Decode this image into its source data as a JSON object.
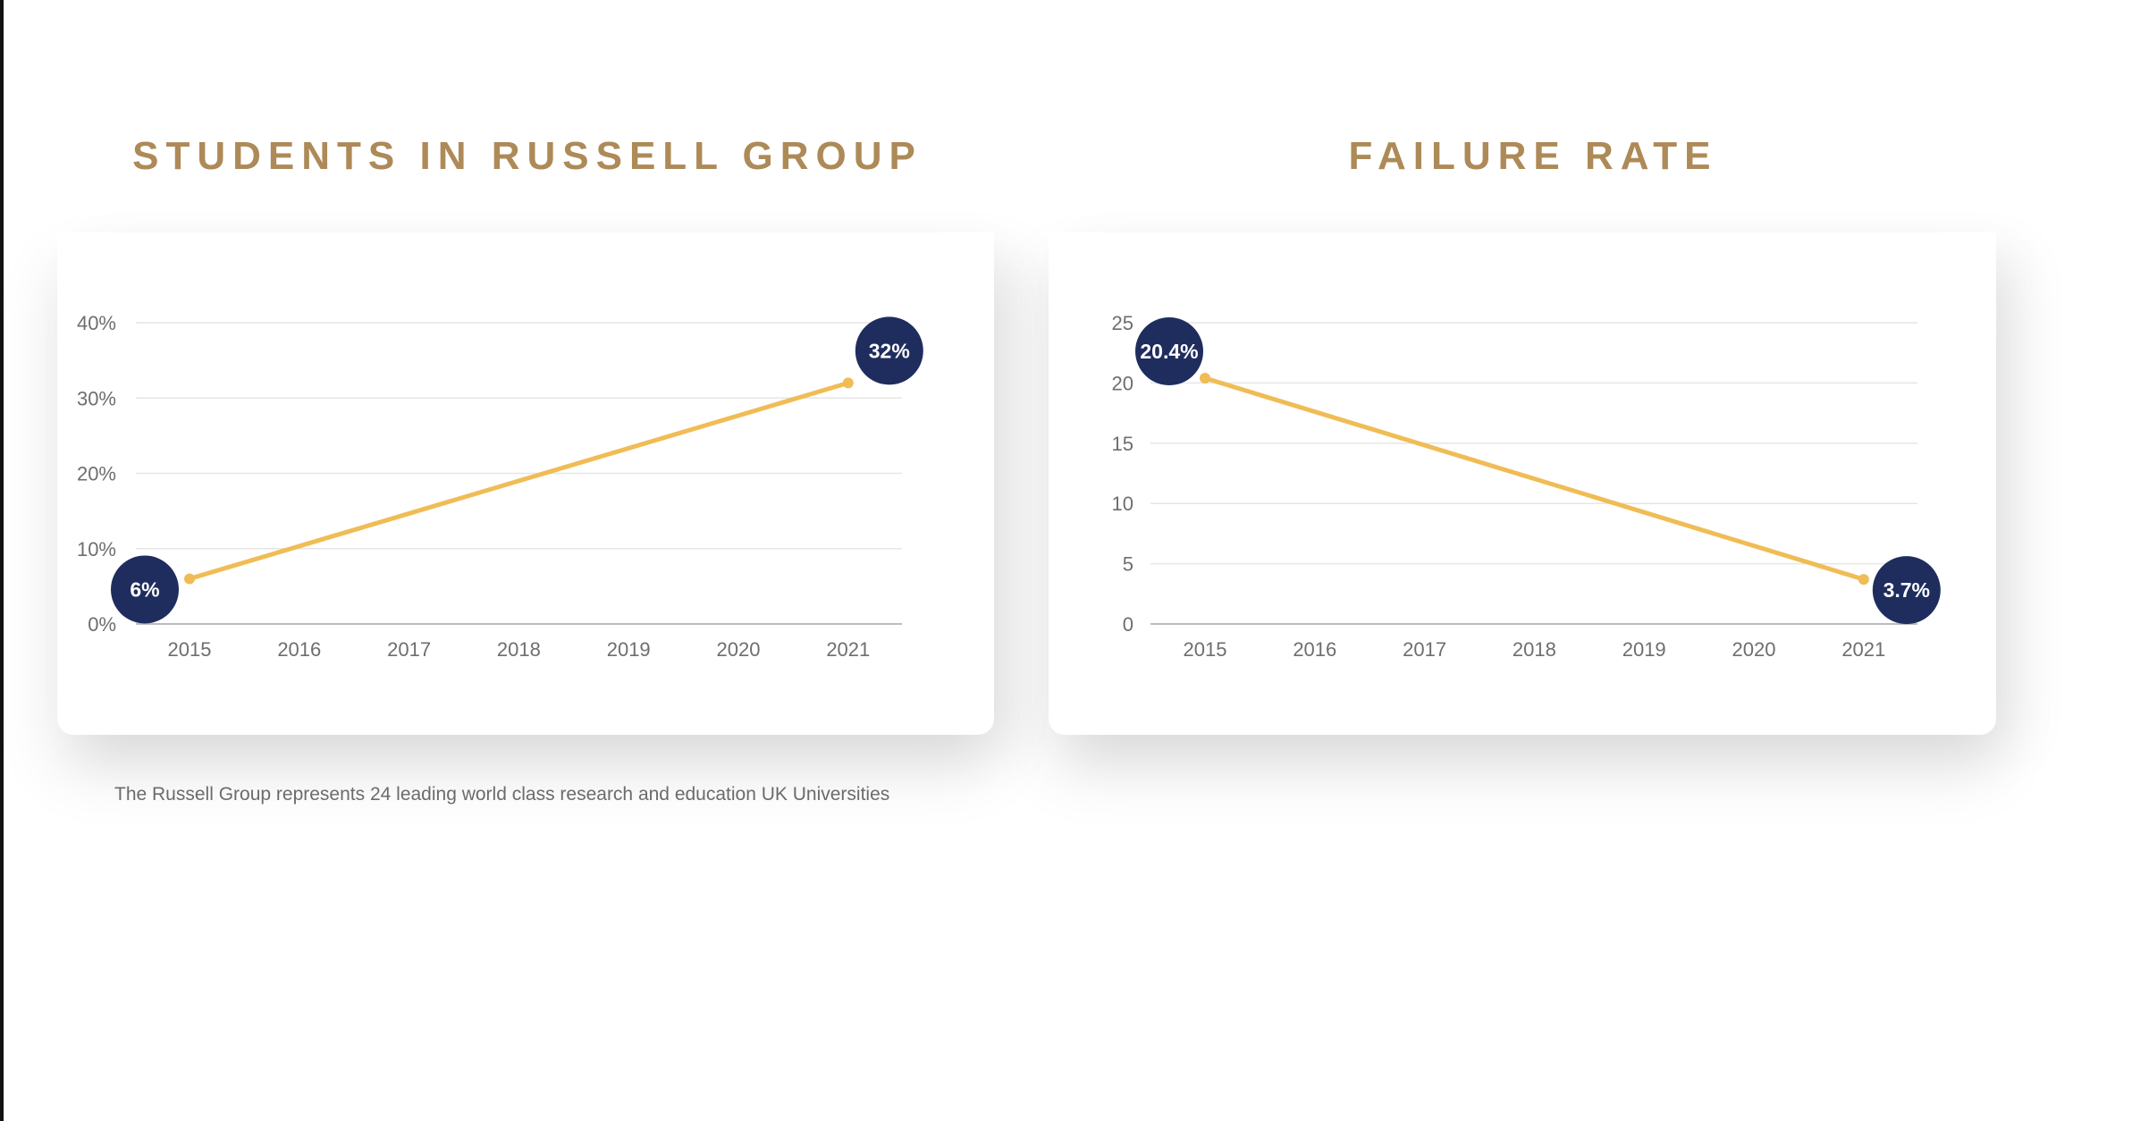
{
  "chart_data": [
    {
      "type": "line",
      "title": "STUDENTS IN RUSSELL GROUP",
      "categories": [
        "2015",
        "2016",
        "2017",
        "2018",
        "2019",
        "2020",
        "2021"
      ],
      "series": [
        {
          "values": [
            6,
            32
          ],
          "x": [
            "2015",
            "2021"
          ],
          "value_labels": [
            "6%",
            "32%"
          ]
        }
      ],
      "yticks": [
        "0%",
        "10%",
        "20%",
        "30%",
        "40%"
      ],
      "ylim": [
        0,
        40
      ],
      "grid": true
    },
    {
      "type": "line",
      "title": "FAILURE RATE",
      "categories": [
        "2015",
        "2016",
        "2017",
        "2018",
        "2019",
        "2020",
        "2021"
      ],
      "series": [
        {
          "values": [
            20.4,
            3.7
          ],
          "x": [
            "2015",
            "2021"
          ],
          "value_labels": [
            "20.4%",
            "3.7%"
          ]
        }
      ],
      "yticks": [
        "0",
        "5",
        "10",
        "15",
        "20",
        "25"
      ],
      "ylim": [
        0,
        25
      ],
      "grid": true
    }
  ],
  "footnote": "The Russell Group represents 24 leading world class research and education UK Universities",
  "colors": {
    "title": "#ad8a57",
    "line": "#f0bc55",
    "badge": "#1f2d5e",
    "badge_text": "#ffffff",
    "grid": "#e6e6e6",
    "axis": "#bdbdbd",
    "tick": "#6e6e6e"
  }
}
